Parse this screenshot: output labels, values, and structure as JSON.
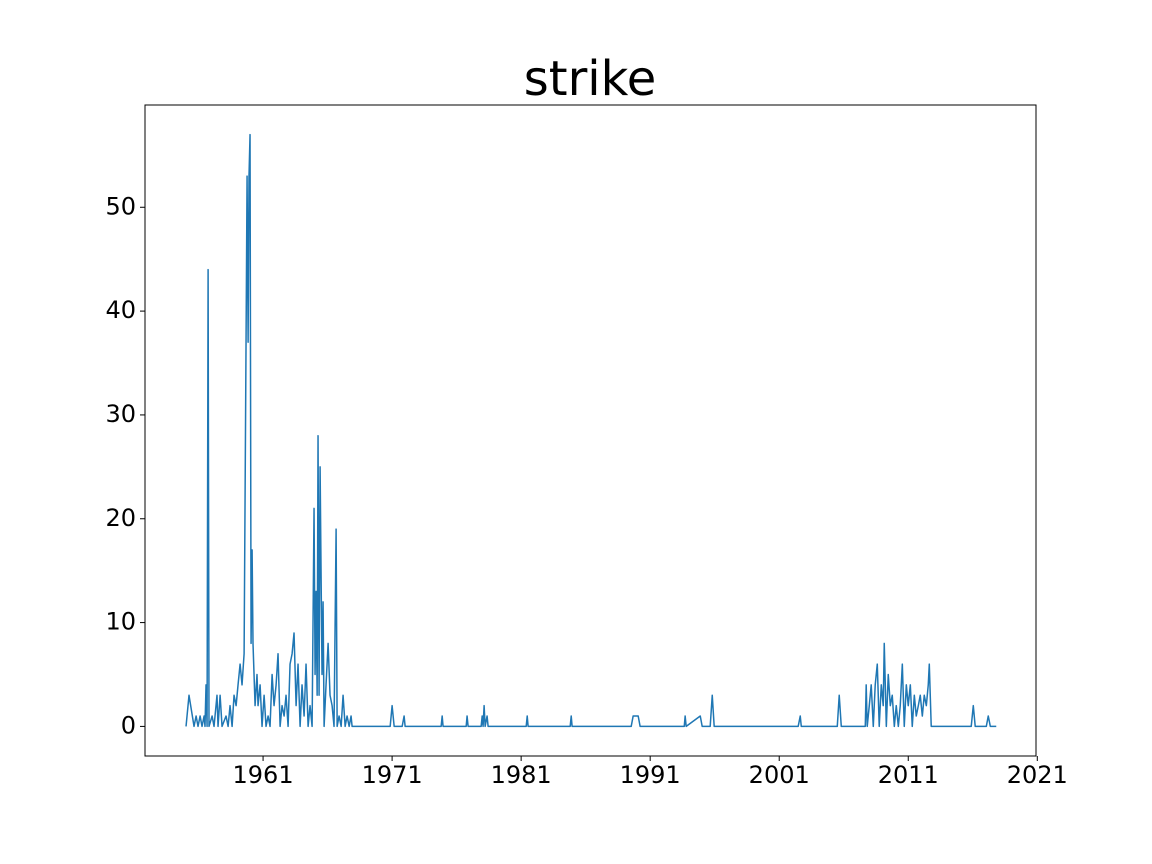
{
  "chart_data": {
    "type": "line",
    "title": "strike",
    "color": "#1f77b4",
    "x": [
      1955.03,
      1955.26,
      1955.65,
      1955.81,
      1955.96,
      1956.12,
      1956.27,
      1956.43,
      1956.5,
      1956.58,
      1956.66,
      1956.74,
      1956.81,
      1957.05,
      1957.2,
      1957.43,
      1957.51,
      1957.67,
      1957.82,
      1958.13,
      1958.29,
      1958.44,
      1958.6,
      1958.75,
      1958.91,
      1959.06,
      1959.22,
      1959.37,
      1959.53,
      1959.68,
      1959.76,
      1959.84,
      1959.91,
      1959.99,
      1960.07,
      1960.15,
      1960.22,
      1960.38,
      1960.53,
      1960.61,
      1960.77,
      1960.92,
      1961.08,
      1961.23,
      1961.39,
      1961.54,
      1961.7,
      1961.85,
      1962.01,
      1962.16,
      1962.32,
      1962.47,
      1962.63,
      1962.78,
      1962.94,
      1963.09,
      1963.25,
      1963.4,
      1963.56,
      1963.71,
      1963.87,
      1964.02,
      1964.18,
      1964.33,
      1964.49,
      1964.64,
      1964.8,
      1964.95,
      1965.03,
      1965.11,
      1965.19,
      1965.26,
      1965.34,
      1965.42,
      1965.5,
      1965.57,
      1965.65,
      1965.73,
      1965.88,
      1966.04,
      1966.19,
      1966.35,
      1966.5,
      1966.66,
      1966.74,
      1966.89,
      1967.05,
      1967.2,
      1967.36,
      1967.51,
      1967.67,
      1967.82,
      1967.9,
      1968.05,
      1970.85,
      1971.0,
      1971.16,
      1971.78,
      1971.93,
      1972.01,
      1974.8,
      1974.88,
      1974.95,
      1976.74,
      1976.81,
      1976.89,
      1977.9,
      1977.98,
      1978.05,
      1978.13,
      1978.21,
      1978.36,
      1978.44,
      1981.39,
      1981.47,
      1981.54,
      1984.8,
      1984.88,
      1984.95,
      1989.53,
      1989.68,
      1990.07,
      1990.22,
      1993.64,
      1993.71,
      1993.79,
      1994.88,
      1995.03,
      1995.65,
      1995.81,
      1995.96,
      2002.47,
      2002.63,
      2002.71,
      2005.5,
      2005.65,
      2005.81,
      2007.67,
      2007.74,
      2007.82,
      2007.98,
      2008.13,
      2008.29,
      2008.44,
      2008.6,
      2008.75,
      2008.91,
      2009.06,
      2009.14,
      2009.3,
      2009.45,
      2009.61,
      2009.76,
      2009.92,
      2010.07,
      2010.23,
      2010.38,
      2010.54,
      2010.69,
      2010.85,
      2011.0,
      2011.16,
      2011.31,
      2011.47,
      2011.62,
      2011.78,
      2011.93,
      2012.09,
      2012.24,
      2012.4,
      2012.55,
      2012.63,
      2012.78,
      2015.88,
      2016.04,
      2016.19,
      2017.05,
      2017.2,
      2017.36,
      2017.82
    ],
    "values": [
      0,
      3,
      0,
      1,
      0,
      1,
      0,
      1,
      0,
      4,
      0,
      44,
      0,
      1,
      0,
      3,
      0,
      3,
      0,
      1,
      0,
      2,
      0,
      3,
      2,
      4,
      6,
      4,
      7,
      37,
      53,
      37,
      53,
      57,
      8,
      17,
      8,
      2,
      5,
      2,
      4,
      0,
      3,
      0,
      1,
      0,
      5,
      2,
      4,
      7,
      0,
      2,
      1,
      3,
      0,
      6,
      7,
      9,
      2,
      6,
      0,
      4,
      1,
      6,
      0,
      2,
      0,
      21,
      5,
      13,
      3,
      28,
      3,
      25,
      14,
      5,
      12,
      0,
      4,
      8,
      3,
      2,
      0,
      19,
      0,
      1,
      0,
      3,
      0,
      1,
      0,
      1,
      0,
      0,
      0,
      2,
      0,
      0,
      1,
      0,
      0,
      1,
      0,
      0,
      1,
      0,
      0,
      1,
      0,
      2,
      0,
      1,
      0,
      0,
      1,
      0,
      0,
      1,
      0,
      0,
      1,
      1,
      0,
      0,
      1,
      0,
      1,
      0,
      0,
      3,
      0,
      0,
      1,
      0,
      0,
      3,
      0,
      0,
      4,
      0,
      2,
      4,
      0,
      4,
      6,
      0,
      4,
      2,
      8,
      0,
      5,
      2,
      3,
      0,
      2,
      0,
      2,
      6,
      0,
      4,
      2,
      4,
      0,
      3,
      1,
      2,
      3,
      1,
      3,
      2,
      4,
      6,
      0,
      0,
      2,
      0,
      0,
      1,
      0,
      0
    ],
    "xlim": [
      1951.85,
      2020.9
    ],
    "xticks": [
      1961,
      1971,
      1981,
      1991,
      2001,
      2011,
      2021
    ],
    "ylim": [
      -2.85,
      59.85
    ],
    "yticks": [
      0,
      10,
      20,
      30,
      40,
      50
    ]
  }
}
